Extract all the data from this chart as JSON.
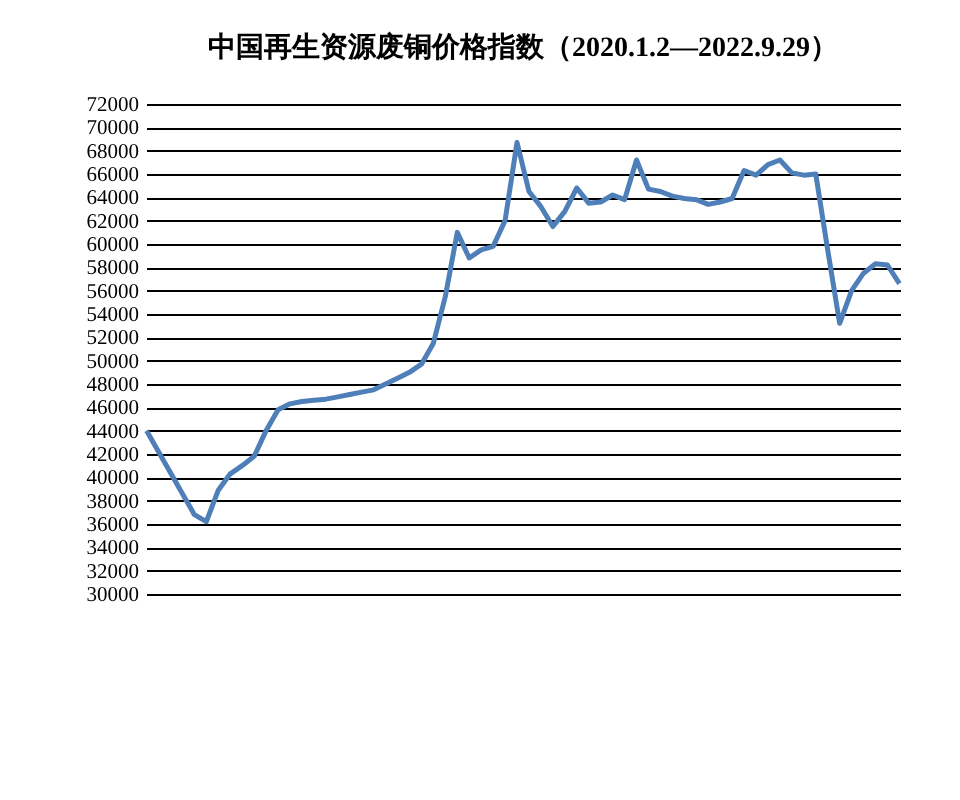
{
  "chart_data": {
    "type": "line",
    "title": "中国再生资源废铜价格指数（2020.1.2—2022.9.29）",
    "categories": [
      null,
      null,
      null,
      null,
      null,
      null,
      null,
      null,
      null,
      null,
      null,
      null,
      null,
      null,
      null,
      null,
      null,
      null,
      null,
      null,
      null,
      null,
      null,
      null,
      null,
      null,
      null,
      null,
      null,
      null,
      null,
      null,
      null,
      null,
      null,
      null,
      null,
      null,
      null,
      null,
      null,
      null,
      null,
      null,
      null,
      null,
      null,
      null,
      null,
      null,
      null,
      null,
      null,
      null,
      null,
      null,
      null,
      null,
      null,
      null,
      null,
      null,
      null,
      null
    ],
    "series": [
      {
        "color": "#4f7fb8",
        "values": [
          44000,
          42200,
          40400,
          38600,
          36800,
          36200,
          38900,
          40300,
          41000,
          41800,
          44000,
          45800,
          46300,
          46500,
          46600,
          46700,
          46900,
          47100,
          47300,
          47500,
          48000,
          48500,
          49000,
          49700,
          51500,
          55500,
          61000,
          58800,
          59500,
          59800,
          62000,
          68700,
          64500,
          63200,
          61500,
          62800,
          64800,
          63500,
          63600,
          64200,
          63800,
          67200,
          64700,
          64500,
          64100,
          63900,
          63800,
          63400,
          63600,
          63900,
          66300,
          65900,
          66800,
          67200,
          66100,
          65900,
          66000,
          59500,
          53200,
          56000,
          57500,
          58300,
          58200,
          56600
        ]
      }
    ],
    "ylim": [
      30000,
      72000
    ],
    "yticks": [
      30000,
      32000,
      34000,
      36000,
      38000,
      40000,
      42000,
      44000,
      46000,
      48000,
      50000,
      52000,
      54000,
      56000,
      58000,
      60000,
      62000,
      64000,
      66000,
      68000,
      70000,
      72000
    ],
    "grid": "y",
    "tick_labels": "y",
    "marker": "none",
    "line_style": "solid"
  }
}
